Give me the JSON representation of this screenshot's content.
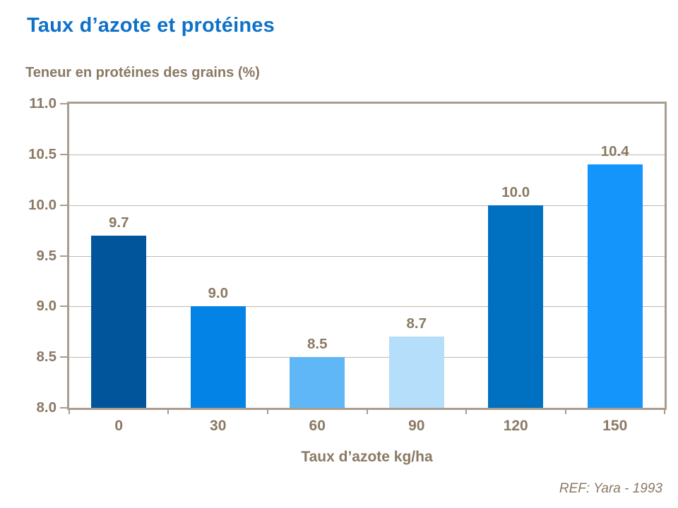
{
  "page": {
    "title": "Taux d’azote et protéines",
    "subtitle": "Teneur en protéines des grains (%)",
    "reference": "REF: Yara - 1993"
  },
  "colors": {
    "title_blue": "#0E71C8",
    "text_brown": "#8A7963",
    "gridline": "#C2B8AA",
    "frame": "#A89D8F",
    "background": "#FFFFFF"
  },
  "chart_data": {
    "type": "bar",
    "title": "Taux d’azote et protéines",
    "subtitle": "Teneur en protéines des grains (%)",
    "categories": [
      "0",
      "30",
      "60",
      "90",
      "120",
      "150"
    ],
    "values": [
      9.7,
      9.0,
      8.5,
      8.7,
      10.0,
      10.4
    ],
    "data_labels": [
      "9.7",
      "9.0",
      "8.5",
      "8.7",
      "10.0",
      "10.4"
    ],
    "bar_colors": [
      "#01559B",
      "#0483E6",
      "#60B7F8",
      "#B5DEFA",
      "#0070C0",
      "#1495FB"
    ],
    "xlabel": "Taux d’azote kg/ha",
    "ylabel": "Teneur en protéines des grains (%)",
    "ylim": [
      8.0,
      11.0
    ],
    "yticks": [
      8.0,
      8.5,
      9.0,
      9.5,
      10.0,
      10.5,
      11.0
    ],
    "ytick_labels": [
      "8.0",
      "8.5",
      "9.0",
      "9.5",
      "10.0",
      "10.5",
      "11.0"
    ],
    "grid": "horizontal",
    "legend_position": "none",
    "annotation": "REF: Yara - 1993"
  }
}
